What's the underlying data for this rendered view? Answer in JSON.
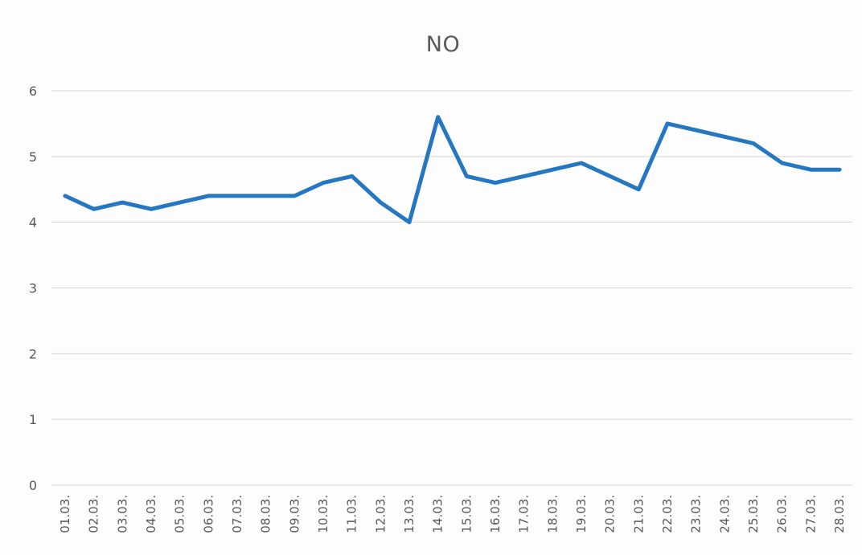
{
  "chart_data": {
    "type": "line",
    "title": "NO",
    "xlabel": "",
    "ylabel": "",
    "categories": [
      "01.03.",
      "02.03.",
      "03.03.",
      "04.03.",
      "05.03.",
      "06.03.",
      "07.03.",
      "08.03.",
      "09.03.",
      "10.03.",
      "11.03.",
      "12.03.",
      "13.03.",
      "14.03.",
      "15.03.",
      "16.03.",
      "17.03.",
      "18.03.",
      "19.03.",
      "20.03.",
      "21.03.",
      "22.03.",
      "23.03.",
      "24.03.",
      "25.03.",
      "26.03.",
      "27.03.",
      "28.03."
    ],
    "series": [
      {
        "values": [
          4.4,
          4.2,
          4.3,
          4.2,
          4.3,
          4.4,
          4.4,
          4.4,
          4.4,
          4.6,
          4.7,
          4.3,
          4.0,
          5.6,
          4.7,
          4.6,
          4.7,
          4.8,
          4.9,
          4.7,
          4.5,
          5.5,
          5.4,
          5.3,
          5.2,
          4.9,
          4.8,
          4.8
        ],
        "color": "#2577c1"
      }
    ],
    "yticks": [
      "0",
      "1",
      "2",
      "3",
      "4",
      "5",
      "6"
    ],
    "ylim": [
      0,
      6
    ],
    "grid": true,
    "legend": "none"
  }
}
